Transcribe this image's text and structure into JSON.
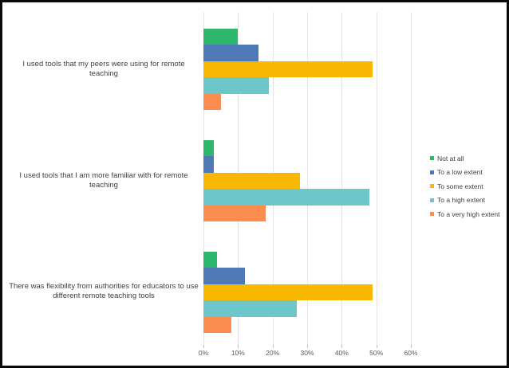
{
  "chart_data": {
    "type": "bar",
    "orientation": "horizontal",
    "title": "",
    "categories": [
      "I used tools that my peers were using for remote teaching",
      "I used tools that I am more familiar with for remote teaching",
      "There was flexibility from authorities for educators to use different remote teaching tools"
    ],
    "series": [
      {
        "name": "Not at all",
        "color": "#2db86d",
        "values": [
          10,
          3,
          4
        ]
      },
      {
        "name": "To a low extent",
        "color": "#4e79b7",
        "values": [
          16,
          3,
          12
        ]
      },
      {
        "name": "To some extent",
        "color": "#f8b801",
        "values": [
          49,
          28,
          49
        ]
      },
      {
        "name": "To a high extent",
        "color": "#6cc6ca",
        "values": [
          19,
          48,
          27
        ]
      },
      {
        "name": "To a very high extent",
        "color": "#fb8d50",
        "values": [
          5,
          18,
          8
        ]
      }
    ],
    "x_axis": {
      "min": 0,
      "max": 60,
      "step": 10,
      "unit": "%",
      "tick_labels": [
        "0%",
        "10%",
        "20%",
        "30%",
        "40%",
        "50%",
        "60%"
      ]
    },
    "xlabel": "",
    "ylabel": "",
    "grid": true,
    "gridline_color": "#e4e4e4",
    "tick_color": "#bfbfbf",
    "axis_text_color": "#595959",
    "category_text_color": "#3f3f3f",
    "legend_position": "right"
  }
}
